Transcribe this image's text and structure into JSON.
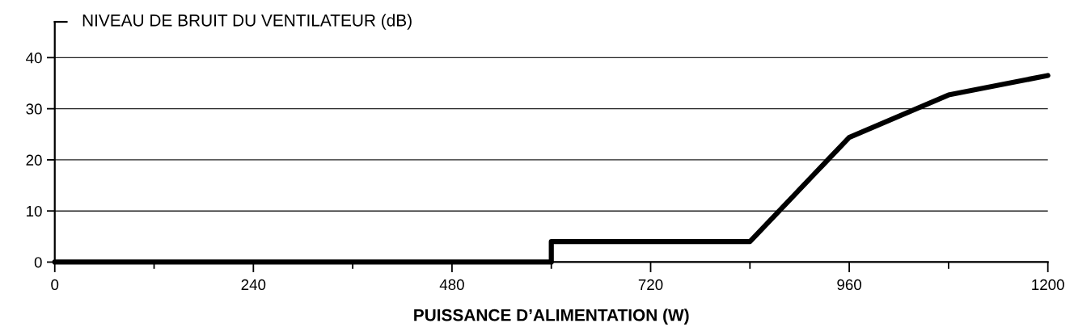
{
  "chart_data": {
    "type": "line",
    "ylabel": "NIVEAU DE BRUIT DU VENTILATEUR (dB)",
    "xlabel": "PUISSANCE D’ALIMENTATION (W)",
    "series": [
      {
        "color": "#000000",
        "x": [
          0,
          600,
          600,
          840,
          960,
          1080,
          1200
        ],
        "values": [
          0,
          0,
          4,
          4,
          24.4,
          32.7,
          36.5
        ]
      }
    ],
    "xlim": [
      0,
      1200
    ],
    "ylim": [
      0,
      47
    ],
    "xticks": [
      0,
      {
        "value": 120,
        "label": null
      },
      240,
      {
        "value": 360,
        "label": null
      },
      480,
      {
        "value": 600,
        "label": null
      },
      720,
      {
        "value": 840,
        "label": null
      },
      960,
      {
        "value": 1080,
        "label": null
      },
      1200
    ],
    "yticks": [
      0,
      10,
      20,
      30,
      40
    ],
    "grid": "y",
    "marker": "none",
    "line_style": "solid"
  }
}
